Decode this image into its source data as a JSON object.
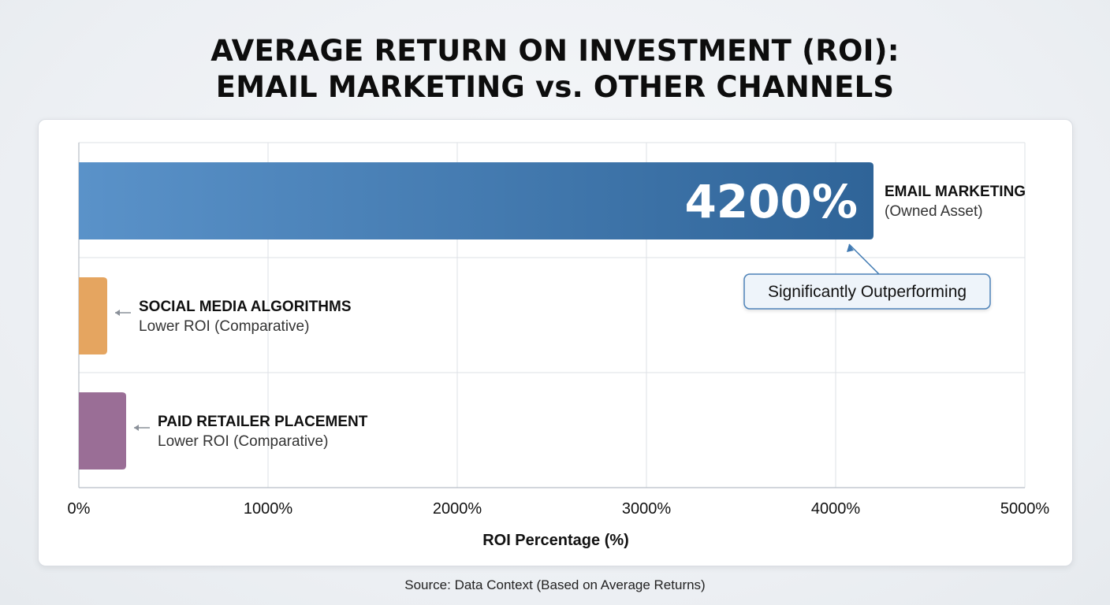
{
  "title_line1": "AVERAGE RETURN ON INVESTMENT (ROI):",
  "title_line2": "EMAIL MARKETING vs. OTHER CHANNELS",
  "source": "Source: Data Context (Based on Average Returns)",
  "chart_data": {
    "type": "bar",
    "orientation": "horizontal",
    "title": "AVERAGE RETURN ON INVESTMENT (ROI): EMAIL MARKETING vs. OTHER CHANNELS",
    "xlabel": "ROI Percentage (%)",
    "ylabel": "",
    "xlim": [
      0,
      5000
    ],
    "ticks": [
      0,
      1000,
      2000,
      3000,
      4000,
      5000
    ],
    "tick_labels": [
      "0%",
      "1000%",
      "2000%",
      "3000%",
      "4000%",
      "5000%"
    ],
    "grid": true,
    "bars": [
      {
        "name": "EMAIL MARKETING",
        "sub": "(Owned Asset)",
        "value": 4200,
        "value_label": "4200%",
        "color": "#3f79b2",
        "color_light": "#5a92c9"
      },
      {
        "name": "SOCIAL MEDIA ALGORITHMS",
        "sub": "Lower ROI (Comparative)",
        "value": 150,
        "color": "#e5a560"
      },
      {
        "name": "PAID RETAILER PLACEMENT",
        "sub": "Lower ROI (Comparative)",
        "value": 250,
        "color": "#9a6e96"
      }
    ],
    "annotation": {
      "text": "Significantly Outperforming",
      "target_bar": 0
    }
  }
}
